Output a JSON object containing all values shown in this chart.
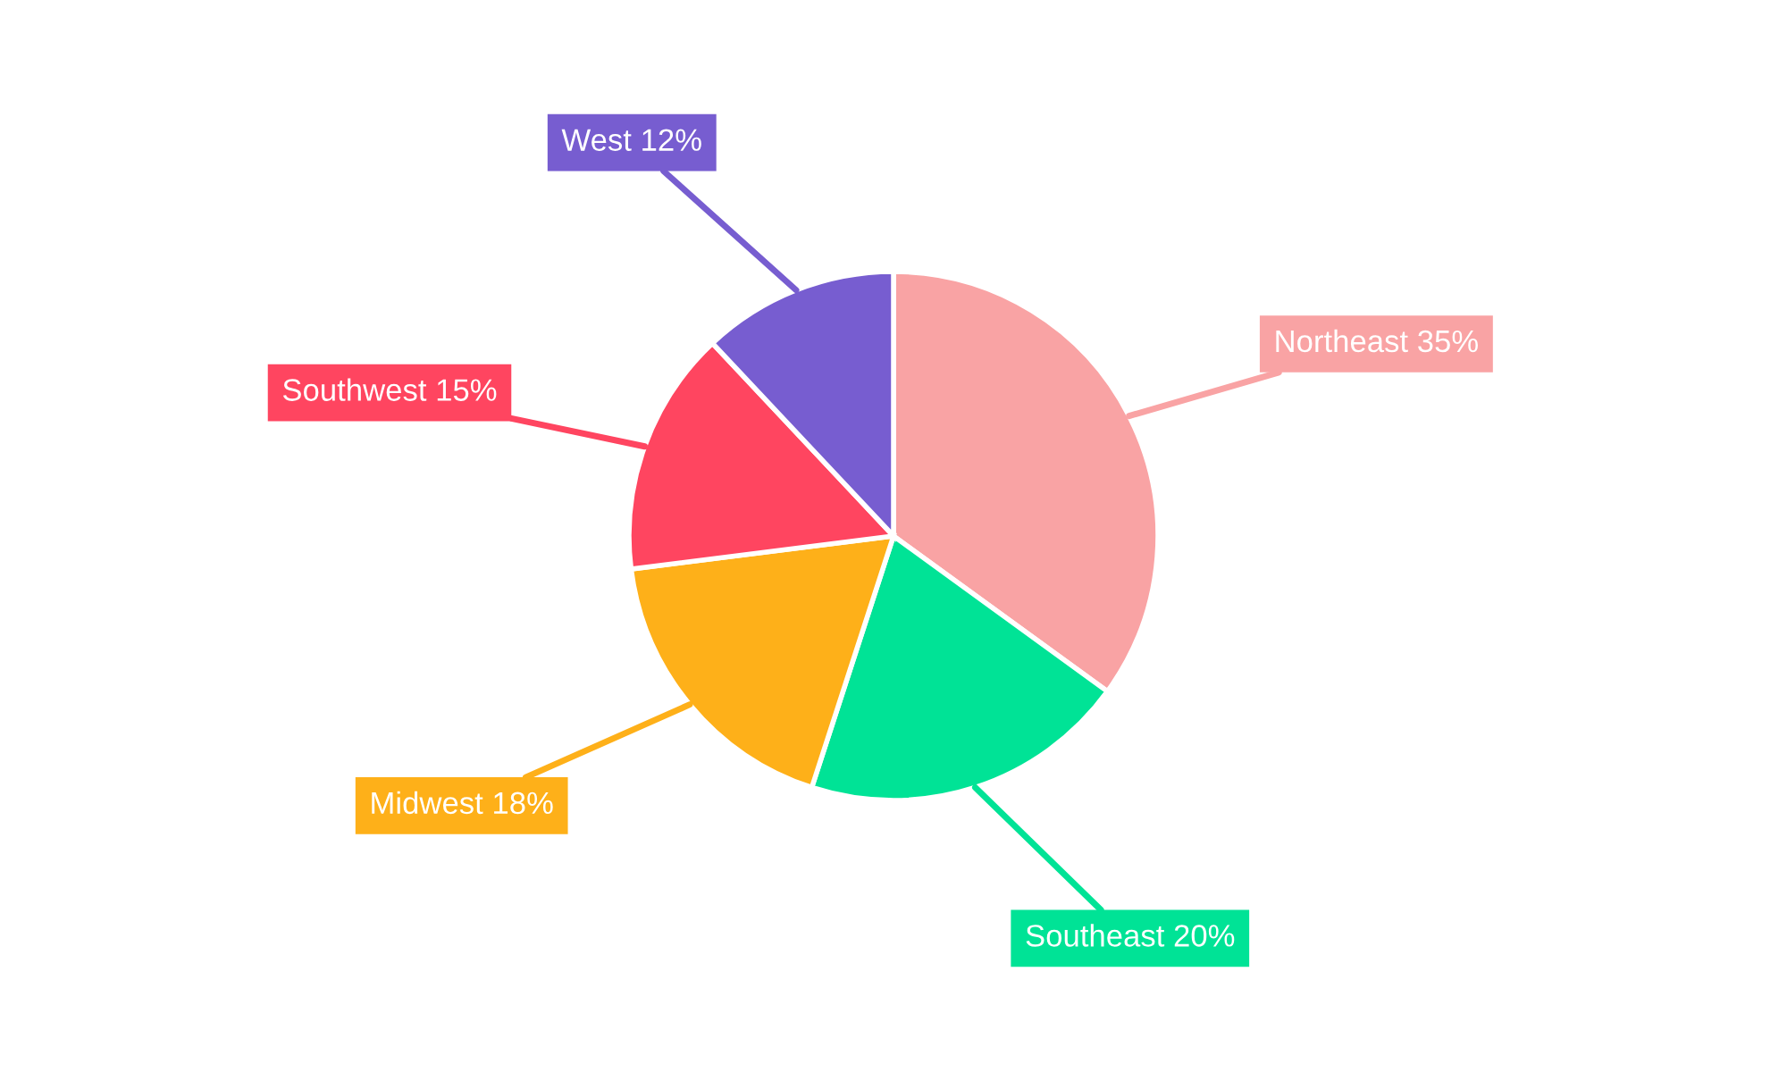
{
  "chart_data": {
    "type": "pie",
    "categories": [
      "Northeast",
      "Southeast",
      "Midwest",
      "Southwest",
      "West"
    ],
    "values": [
      35,
      20,
      18,
      15,
      12
    ],
    "value_labels": [
      "35%",
      "20%",
      "18%",
      "15%",
      "12%"
    ],
    "colors": [
      "#f9a3a4",
      "#00e396",
      "#feb019",
      "#ff4560",
      "#775dd0"
    ],
    "legend": false
  }
}
